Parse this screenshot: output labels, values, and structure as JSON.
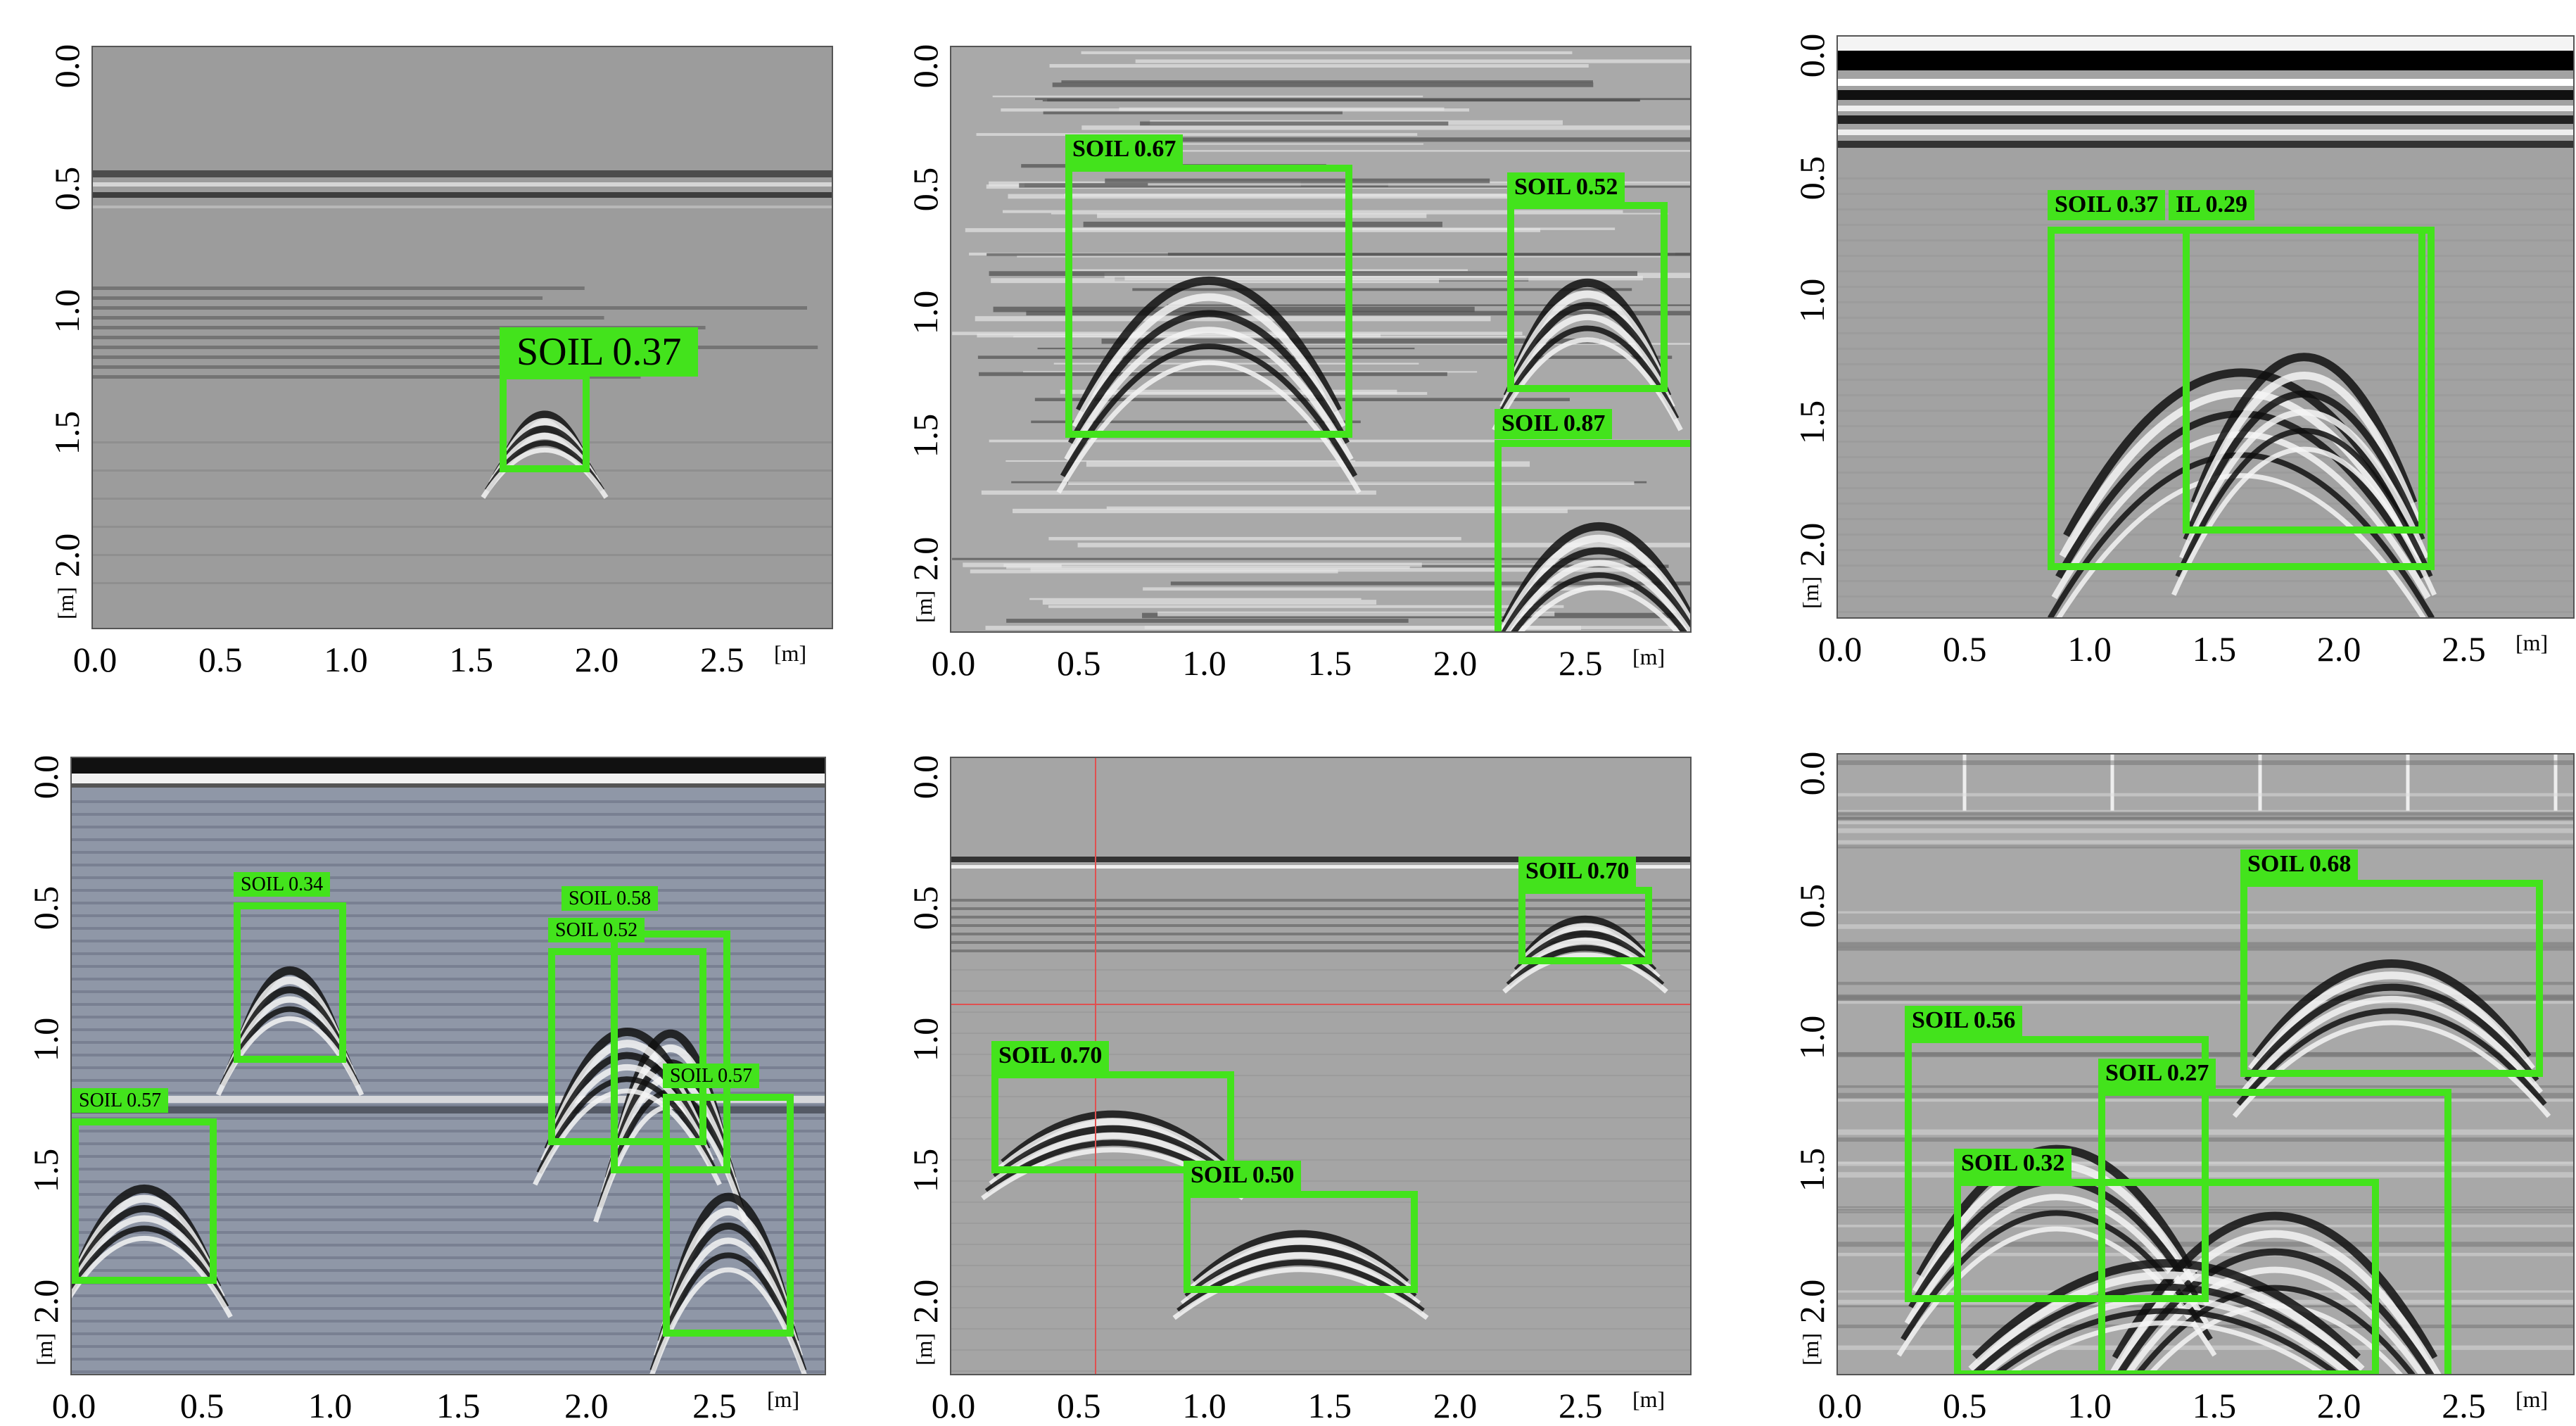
{
  "x_unit": "[m]",
  "y_unit": "[m]",
  "panels": [
    {
      "name": "panel-1",
      "y_ticks": [
        "0.0",
        "0.5",
        "1.0",
        "1.5",
        "2.0"
      ],
      "x_ticks": [
        "0.0",
        "0.5",
        "1.0",
        "1.5",
        "2.0",
        "2.5"
      ],
      "detections": [
        {
          "label": "SOIL  0.37"
        }
      ]
    },
    {
      "name": "panel-2",
      "y_ticks": [
        "0.0",
        "0.5",
        "1.0",
        "1.5",
        "2.0"
      ],
      "x_ticks": [
        "0.0",
        "0.5",
        "1.0",
        "1.5",
        "2.0",
        "2.5"
      ],
      "detections": [
        {
          "label": "SOIL  0.67"
        },
        {
          "label": "SOIL  0.52"
        },
        {
          "label": "SOIL  0.87"
        }
      ]
    },
    {
      "name": "panel-3",
      "y_ticks": [
        "0.0",
        "0.5",
        "1.0",
        "1.5",
        "2.0"
      ],
      "x_ticks": [
        "0.0",
        "0.5",
        "1.0",
        "1.5",
        "2.0",
        "2.5"
      ],
      "detections": [
        {
          "label": "SOIL  0.37"
        },
        {
          "label": "IL  0.29"
        }
      ]
    },
    {
      "name": "panel-4",
      "y_ticks": [
        "0.0",
        "0.5",
        "1.0",
        "1.5",
        "2.0"
      ],
      "x_ticks": [
        "0.0",
        "0.5",
        "1.0",
        "1.5",
        "2.0",
        "2.5"
      ],
      "detections": [
        {
          "label": "SOIL  0.34"
        },
        {
          "label": "SOIL  0.58"
        },
        {
          "label": "SOIL  0.52"
        },
        {
          "label": "SOIL  0.57"
        },
        {
          "label": "SOIL  0.57"
        }
      ]
    },
    {
      "name": "panel-5",
      "y_ticks": [
        "0.0",
        "0.5",
        "1.0",
        "1.5",
        "2.0"
      ],
      "x_ticks": [
        "0.0",
        "0.5",
        "1.0",
        "1.5",
        "2.0",
        "2.5"
      ],
      "detections": [
        {
          "label": "SOIL  0.70"
        },
        {
          "label": "SOIL  0.70"
        },
        {
          "label": "SOIL  0.50"
        }
      ]
    },
    {
      "name": "panel-6",
      "y_ticks": [
        "0.0",
        "0.5",
        "1.0",
        "1.5",
        "2.0"
      ],
      "x_ticks": [
        "0.0",
        "0.5",
        "1.0",
        "1.5",
        "2.0",
        "2.5"
      ],
      "detections": [
        {
          "label": "SOIL  0.68"
        },
        {
          "label": "SOIL  0.56"
        },
        {
          "label": "SOIL  0.27"
        },
        {
          "label": "SOIL  0.32"
        }
      ]
    }
  ],
  "colors": {
    "detection_box": "#43e31c",
    "crosshair": "#e05050"
  }
}
